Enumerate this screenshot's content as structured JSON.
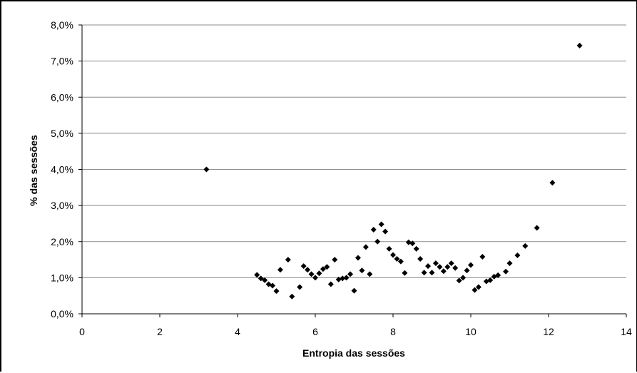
{
  "chart_data": {
    "type": "scatter",
    "title": "",
    "xlabel": "Entropia das sessões",
    "ylabel": "% das sessões",
    "xlim": [
      0,
      14
    ],
    "ylim": [
      0,
      8
    ],
    "x_ticks": [
      0,
      2,
      4,
      6,
      8,
      10,
      12,
      14
    ],
    "y_ticks": [
      0,
      1,
      2,
      3,
      4,
      5,
      6,
      7,
      8
    ],
    "x_tick_labels": [
      "0",
      "2",
      "4",
      "6",
      "8",
      "10",
      "12",
      "14"
    ],
    "y_tick_labels": [
      "0,0%",
      "1,0%",
      "2,0%",
      "3,0%",
      "4,0%",
      "5,0%",
      "6,0%",
      "7,0%",
      "8,0%"
    ],
    "grid": "horizontal",
    "legend": "none",
    "marker": "diamond",
    "marker_color": "#000000",
    "series": [
      {
        "points": [
          [
            3.2,
            4.0
          ],
          [
            4.5,
            1.08
          ],
          [
            4.6,
            0.98
          ],
          [
            4.7,
            0.93
          ],
          [
            4.8,
            0.82
          ],
          [
            4.9,
            0.78
          ],
          [
            5.0,
            0.63
          ],
          [
            5.1,
            1.22
          ],
          [
            5.3,
            1.5
          ],
          [
            5.4,
            0.48
          ],
          [
            5.6,
            0.74
          ],
          [
            5.7,
            1.32
          ],
          [
            5.8,
            1.22
          ],
          [
            5.9,
            1.1
          ],
          [
            6.0,
            1.0
          ],
          [
            6.1,
            1.12
          ],
          [
            6.2,
            1.24
          ],
          [
            6.3,
            1.3
          ],
          [
            6.4,
            0.82
          ],
          [
            6.5,
            1.5
          ],
          [
            6.6,
            0.95
          ],
          [
            6.7,
            0.98
          ],
          [
            6.8,
            1.0
          ],
          [
            6.9,
            1.1
          ],
          [
            7.0,
            0.64
          ],
          [
            7.1,
            1.55
          ],
          [
            7.2,
            1.2
          ],
          [
            7.3,
            1.85
          ],
          [
            7.4,
            1.1
          ],
          [
            7.5,
            2.33
          ],
          [
            7.6,
            2.0
          ],
          [
            7.7,
            2.48
          ],
          [
            7.8,
            2.28
          ],
          [
            7.9,
            1.8
          ],
          [
            8.0,
            1.63
          ],
          [
            8.1,
            1.52
          ],
          [
            8.2,
            1.45
          ],
          [
            8.3,
            1.13
          ],
          [
            8.4,
            1.98
          ],
          [
            8.5,
            1.95
          ],
          [
            8.6,
            1.8
          ],
          [
            8.7,
            1.52
          ],
          [
            8.8,
            1.14
          ],
          [
            8.9,
            1.32
          ],
          [
            9.0,
            1.14
          ],
          [
            9.1,
            1.4
          ],
          [
            9.2,
            1.3
          ],
          [
            9.3,
            1.18
          ],
          [
            9.4,
            1.3
          ],
          [
            9.5,
            1.4
          ],
          [
            9.6,
            1.27
          ],
          [
            9.7,
            0.92
          ],
          [
            9.8,
            1.0
          ],
          [
            9.9,
            1.2
          ],
          [
            10.0,
            1.35
          ],
          [
            10.1,
            0.66
          ],
          [
            10.2,
            0.74
          ],
          [
            10.3,
            1.58
          ],
          [
            10.4,
            0.9
          ],
          [
            10.5,
            0.93
          ],
          [
            10.6,
            1.03
          ],
          [
            10.7,
            1.07
          ],
          [
            10.9,
            1.17
          ],
          [
            11.0,
            1.4
          ],
          [
            11.2,
            1.62
          ],
          [
            11.4,
            1.88
          ],
          [
            11.7,
            2.38
          ],
          [
            12.1,
            3.63
          ],
          [
            12.8,
            7.43
          ]
        ]
      }
    ]
  }
}
